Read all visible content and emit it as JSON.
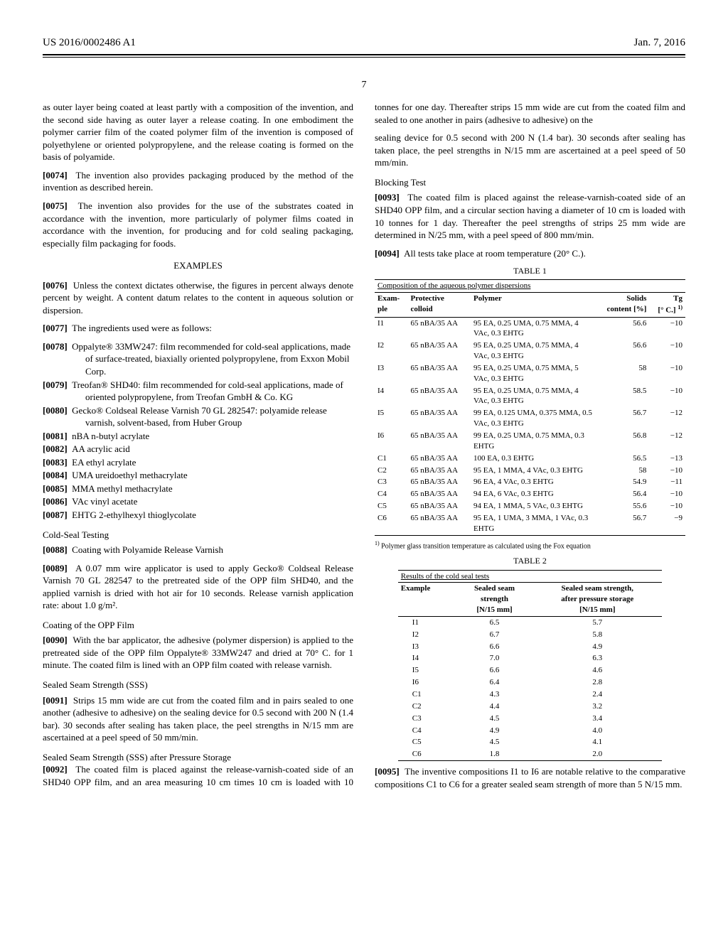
{
  "header": {
    "left": "US 2016/0002486 A1",
    "right": "Jan. 7, 2016"
  },
  "page_number": "7",
  "col1": {
    "intro": "as outer layer being coated at least partly with a composition of the invention, and the second side having as outer layer a release coating. In one embodiment the polymer carrier film of the coated polymer film of the invention is composed of polyethylene or oriented polypropylene, and the release coating is formed on the basis of polyamide.",
    "p0074": "The invention also provides packaging produced by the method of the invention as described herein.",
    "p0075": "The invention also provides for the use of the substrates coated in accordance with the invention, more particularly of polymer films coated in accordance with the invention, for producing and for cold sealing packaging, especially film packaging for foods.",
    "examples_heading": "EXAMPLES",
    "p0076": "Unless the context dictates otherwise, the figures in percent always denote percent by weight. A content datum relates to the content in aqueous solution or dispersion.",
    "p0077": "The ingredients used were as follows:",
    "p0078": "Oppalyte® 33MW247: film recommended for cold-seal applications, made of surface-treated, biaxially oriented polypropylene, from Exxon Mobil Corp.",
    "p0079": "Treofan® SHD40: film recommended for cold-seal applications, made of oriented polypropylene, from Treofan GmbH & Co. KG",
    "p0080": "Gecko® Coldseal Release Varnish 70 GL 282547: polyamide release varnish, solvent-based, from Huber Group",
    "p0081": "nBA n-butyl acrylate",
    "p0082": "AA acrylic acid",
    "p0083": "EA ethyl acrylate",
    "p0084": "UMA ureidoethyl methacrylate",
    "p0085": "MMA methyl methacrylate",
    "p0086": "VAc vinyl acetate",
    "p0087": "EHTG 2-ethylhexyl thioglycolate",
    "cold_seal_heading": "Cold-Seal Testing",
    "p0088": "Coating with Polyamide Release Varnish",
    "p0089": "A 0.07 mm wire applicator is used to apply Gecko® Coldseal Release Varnish 70 GL 282547 to the pretreated side of the OPP film SHD40, and the applied varnish is dried with hot air for 10 seconds. Release varnish application rate: about 1.0 g/m².",
    "coating_heading": "Coating of the OPP Film",
    "p0090": "With the bar applicator, the adhesive (polymer dispersion) is applied to the pretreated side of the OPP film Oppalyte® 33MW247 and dried at 70° C. for 1 minute. The coated film is lined with an OPP film coated with release varnish.",
    "sss_heading": "Sealed Seam Strength (SSS)",
    "p0091": "Strips 15 mm wide are cut from the coated film and in pairs sealed to one another (adhesive to adhesive) on the sealing device for 0.5 second with 200 N (1.4 bar). 30 seconds after sealing has taken place, the peel strengths in N/15 mm are ascertained at a peel speed of 50 mm/min.",
    "sss_after_heading": "Sealed Seam Strength (SSS) after Pressure Storage",
    "p0092": "The coated film is placed against the release-varnish-coated side of an SHD40 OPP film, and an area measuring 10 cm times 10 cm is loaded with 10 tonnes for one day. Thereafter strips 15 mm wide are cut from the coated film and sealed to one another in pairs (adhesive to adhesive) on the"
  },
  "col2": {
    "cont": "sealing device for 0.5 second with 200 N (1.4 bar). 30 seconds after sealing has taken place, the peel strengths in N/15 mm are ascertained at a peel speed of 50 mm/min.",
    "blocking_heading": "Blocking Test",
    "p0093": "The coated film is placed against the release-varnish-coated side of an SHD40 OPP film, and a circular section having a diameter of 10 cm is loaded with 10 tonnes for 1 day. Thereafter the peel strengths of strips 25 mm wide are determined in N/25 mm, with a peel speed of 800 mm/min.",
    "p0094": "All tests take place at room temperature (20° C.).",
    "p0095": "The inventive compositions I1 to I6 are notable relative to the comparative compositions C1 to C6 for a greater sealed seam strength of more than 5 N/15 mm."
  },
  "table1": {
    "caption": "TABLE 1",
    "subcaption": "Composition of the aqueous polymer dispersions",
    "headers": [
      "Example",
      "Protective colloid",
      "Polymer",
      "Solids content [%]",
      "Tg [° C.] 1)"
    ],
    "rows": [
      [
        "I1",
        "65 nBA/35 AA",
        "95 EA, 0.25 UMA, 0.75 MMA, 4 VAc, 0.3 EHTG",
        "56.6",
        "−10"
      ],
      [
        "I2",
        "65 nBA/35 AA",
        "95 EA, 0.25 UMA, 0.75 MMA, 4 VAc, 0.3 EHTG",
        "56.6",
        "−10"
      ],
      [
        "I3",
        "65 nBA/35 AA",
        "95 EA, 0.25 UMA, 0.75 MMA, 5 VAc, 0.3 EHTG",
        "58",
        "−10"
      ],
      [
        "I4",
        "65 nBA/35 AA",
        "95 EA, 0.25 UMA, 0.75 MMA, 4 VAc, 0.3 EHTG",
        "58.5",
        "−10"
      ],
      [
        "I5",
        "65 nBA/35 AA",
        "99 EA, 0.125 UMA, 0.375 MMA, 0.5 VAc, 0.3 EHTG",
        "56.7",
        "−12"
      ],
      [
        "I6",
        "65 nBA/35 AA",
        "99 EA, 0.25 UMA, 0.75 MMA, 0.3 EHTG",
        "56.8",
        "−12"
      ],
      [
        "C1",
        "65 nBA/35 AA",
        "100 EA, 0.3 EHTG",
        "56.5",
        "−13"
      ],
      [
        "C2",
        "65 nBA/35 AA",
        "95 EA, 1 MMA, 4 VAc, 0.3 EHTG",
        "58",
        "−10"
      ],
      [
        "C3",
        "65 nBA/35 AA",
        "96 EA, 4 VAc, 0.3 EHTG",
        "54.9",
        "−11"
      ],
      [
        "C4",
        "65 nBA/35 AA",
        "94 EA, 6 VAc, 0.3 EHTG",
        "56.4",
        "−10"
      ],
      [
        "C5",
        "65 nBA/35 AA",
        "94 EA, 1 MMA, 5 VAc, 0.3 EHTG",
        "55.6",
        "−10"
      ],
      [
        "C6",
        "65 nBA/35 AA",
        "95 EA, 1 UMA, 3 MMA, 1 VAc, 0.3 EHTG",
        "56.7",
        "−9"
      ]
    ],
    "footnote": "1) Polymer glass transition temperature as calculated using the Fox equation"
  },
  "table2": {
    "caption": "TABLE 2",
    "subcaption": "Results of the cold seal tests",
    "headers": [
      "Example",
      "Sealed seam strength [N/15 mm]",
      "Sealed seam strength, after pressure storage [N/15 mm]"
    ],
    "rows": [
      [
        "I1",
        "6.5",
        "5.7"
      ],
      [
        "I2",
        "6.7",
        "5.8"
      ],
      [
        "I3",
        "6.6",
        "4.9"
      ],
      [
        "I4",
        "7.0",
        "6.3"
      ],
      [
        "I5",
        "6.6",
        "4.6"
      ],
      [
        "I6",
        "6.4",
        "2.8"
      ],
      [
        "C1",
        "4.3",
        "2.4"
      ],
      [
        "C2",
        "4.4",
        "3.2"
      ],
      [
        "C3",
        "4.5",
        "3.4"
      ],
      [
        "C4",
        "4.9",
        "4.0"
      ],
      [
        "C5",
        "4.5",
        "4.1"
      ],
      [
        "C6",
        "1.8",
        "2.0"
      ]
    ]
  }
}
